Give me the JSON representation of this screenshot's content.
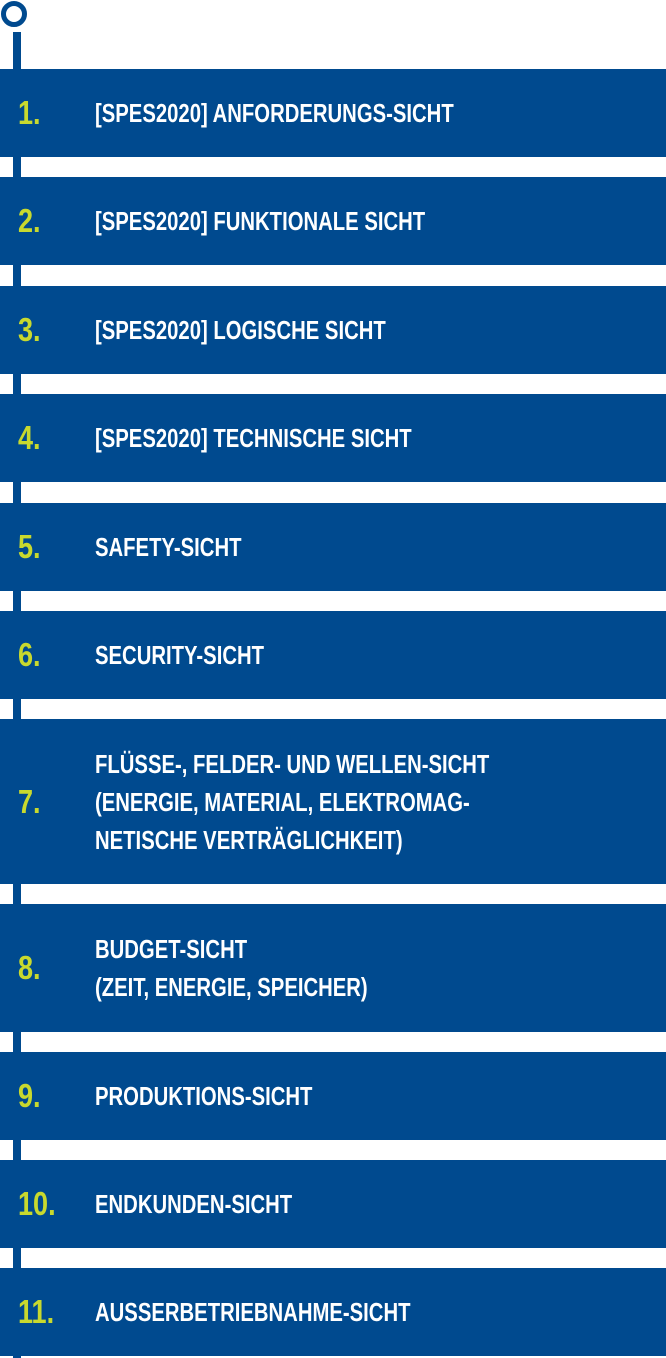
{
  "colors": {
    "band": "#004a8f",
    "number": "#c8d92e",
    "label": "#ffffff",
    "background": "#ffffff"
  },
  "views": [
    {
      "number": "1.",
      "label": "[SPES2020] ANFORDERUNGS-SICHT"
    },
    {
      "number": "2.",
      "label": "[SPES2020] FUNKTIONALE SICHT"
    },
    {
      "number": "3.",
      "label": "[SPES2020] LOGISCHE SICHT"
    },
    {
      "number": "4.",
      "label": "[SPES2020] TECHNISCHE SICHT"
    },
    {
      "number": "5.",
      "label": "SAFETY-SICHT"
    },
    {
      "number": "6.",
      "label": "SECURITY-SICHT"
    },
    {
      "number": "7.",
      "label": "FLÜSSE-, FELDER- UND WELLEN-SICHT\n(ENERGIE, MATERIAL, ELEKTROMAG-\nNETISCHE VERTRÄGLICHKEIT)"
    },
    {
      "number": "8.",
      "label": "BUDGET-SICHT\n(ZEIT, ENERGIE, SPEICHER)"
    },
    {
      "number": "9.",
      "label": "PRODUKTIONS-SICHT"
    },
    {
      "number": "10.",
      "label": "ENDKUNDEN-SICHT"
    },
    {
      "number": "11.",
      "label": "AUSSERBETRIEBNAHME-SICHT"
    }
  ]
}
